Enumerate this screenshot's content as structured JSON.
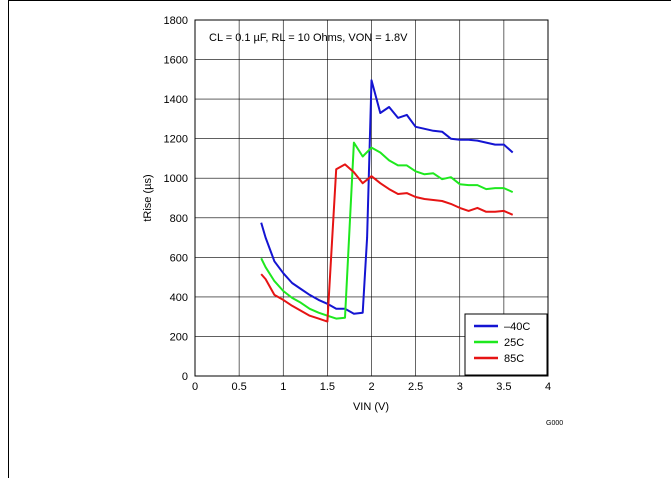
{
  "chart_data": {
    "type": "line",
    "title": "",
    "annotation": "CL = 0.1 µF, RL = 10 Ohms, VON = 1.8V",
    "xlabel": "VIN (V)",
    "ylabel": "tRise (µs)",
    "xlim": [
      0,
      4
    ],
    "ylim": [
      0,
      1800
    ],
    "xticks": [
      0,
      0.5,
      1,
      1.5,
      2,
      2.5,
      3,
      3.5,
      4
    ],
    "xtick_labels": [
      "0",
      "0.5",
      "1",
      "1.5",
      "2",
      "2.5",
      "3",
      "3.5",
      "4"
    ],
    "yticks": [
      0,
      200,
      400,
      600,
      800,
      1000,
      1200,
      1400,
      1600,
      1800
    ],
    "ytick_labels": [
      "0",
      "200",
      "400",
      "600",
      "800",
      "1000",
      "1200",
      "1400",
      "1600",
      "1800"
    ],
    "grid": true,
    "legend_position": "bottom-right",
    "figure_code": "G000",
    "series": [
      {
        "name": "–40C",
        "color": "#1414d2",
        "points": [
          [
            0.75,
            775
          ],
          [
            0.8,
            700
          ],
          [
            0.9,
            580
          ],
          [
            1.0,
            520
          ],
          [
            1.1,
            470
          ],
          [
            1.2,
            440
          ],
          [
            1.3,
            410
          ],
          [
            1.4,
            385
          ],
          [
            1.5,
            365
          ],
          [
            1.6,
            340
          ],
          [
            1.7,
            340
          ],
          [
            1.8,
            315
          ],
          [
            1.9,
            320
          ],
          [
            1.95,
            700
          ],
          [
            2.0,
            1495
          ],
          [
            2.1,
            1330
          ],
          [
            2.2,
            1360
          ],
          [
            2.3,
            1305
          ],
          [
            2.4,
            1320
          ],
          [
            2.5,
            1260
          ],
          [
            2.6,
            1250
          ],
          [
            2.7,
            1240
          ],
          [
            2.8,
            1235
          ],
          [
            2.9,
            1200
          ],
          [
            3.0,
            1195
          ],
          [
            3.1,
            1195
          ],
          [
            3.2,
            1190
          ],
          [
            3.3,
            1180
          ],
          [
            3.4,
            1170
          ],
          [
            3.5,
            1170
          ],
          [
            3.6,
            1130
          ]
        ]
      },
      {
        "name": "25C",
        "color": "#1ee81e",
        "points": [
          [
            0.75,
            595
          ],
          [
            0.8,
            550
          ],
          [
            0.9,
            480
          ],
          [
            1.0,
            430
          ],
          [
            1.1,
            395
          ],
          [
            1.2,
            370
          ],
          [
            1.3,
            340
          ],
          [
            1.4,
            320
          ],
          [
            1.5,
            305
          ],
          [
            1.6,
            290
          ],
          [
            1.7,
            295
          ],
          [
            1.8,
            1180
          ],
          [
            1.9,
            1110
          ],
          [
            2.0,
            1155
          ],
          [
            2.1,
            1130
          ],
          [
            2.2,
            1090
          ],
          [
            2.3,
            1065
          ],
          [
            2.4,
            1065
          ],
          [
            2.5,
            1035
          ],
          [
            2.6,
            1020
          ],
          [
            2.7,
            1025
          ],
          [
            2.8,
            995
          ],
          [
            2.9,
            1005
          ],
          [
            3.0,
            970
          ],
          [
            3.1,
            965
          ],
          [
            3.2,
            965
          ],
          [
            3.3,
            945
          ],
          [
            3.4,
            950
          ],
          [
            3.5,
            950
          ],
          [
            3.6,
            930
          ]
        ]
      },
      {
        "name": "85C",
        "color": "#e61414",
        "points": [
          [
            0.75,
            515
          ],
          [
            0.8,
            490
          ],
          [
            0.9,
            410
          ],
          [
            1.0,
            385
          ],
          [
            1.1,
            355
          ],
          [
            1.2,
            330
          ],
          [
            1.3,
            305
          ],
          [
            1.4,
            290
          ],
          [
            1.5,
            275
          ],
          [
            1.6,
            1045
          ],
          [
            1.7,
            1070
          ],
          [
            1.8,
            1030
          ],
          [
            1.9,
            975
          ],
          [
            2.0,
            1010
          ],
          [
            2.1,
            975
          ],
          [
            2.2,
            945
          ],
          [
            2.3,
            920
          ],
          [
            2.4,
            925
          ],
          [
            2.5,
            905
          ],
          [
            2.6,
            895
          ],
          [
            2.7,
            890
          ],
          [
            2.8,
            885
          ],
          [
            2.9,
            870
          ],
          [
            3.0,
            850
          ],
          [
            3.1,
            835
          ],
          [
            3.2,
            850
          ],
          [
            3.3,
            830
          ],
          [
            3.4,
            830
          ],
          [
            3.5,
            835
          ],
          [
            3.6,
            815
          ]
        ]
      }
    ]
  }
}
